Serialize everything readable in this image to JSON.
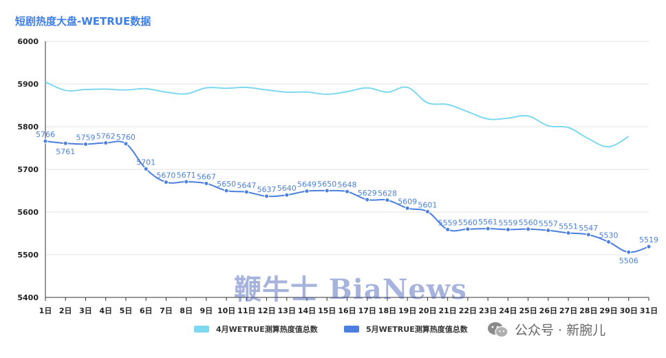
{
  "title": "短剧热度大盘-WETRUE数据",
  "watermark": "鞭牛士 BiaNews",
  "wechat_account": "公众号 · 新腕儿",
  "legend": {
    "april": "4月WETRUE测算热度值总数",
    "may": "5月WETRUE测算热度值总数"
  },
  "colors": {
    "april": "#7dd8f0",
    "may": "#4a7fe0",
    "title": "#3d7fe6",
    "may_label": "#4a80d8"
  },
  "chart_data": {
    "type": "line",
    "title": "短剧热度大盘-WETRUE数据",
    "categories": [
      "1日",
      "2日",
      "3日",
      "4日",
      "5日",
      "6日",
      "7日",
      "8日",
      "9日",
      "10日",
      "11日",
      "12日",
      "13日",
      "14日",
      "15日",
      "16日",
      "17日",
      "18日",
      "19日",
      "20日",
      "21日",
      "22日",
      "23日",
      "24日",
      "25日",
      "26日",
      "27日",
      "28日",
      "29日",
      "30日",
      "31日"
    ],
    "ylim": [
      5400,
      6000
    ],
    "yticks": [
      5400,
      5500,
      5600,
      5700,
      5800,
      5900,
      6000
    ],
    "grid": true,
    "legend_position": "bottom",
    "series": [
      {
        "name": "4月WETRUE测算热度值总数",
        "values": [
          5905,
          5885,
          5887,
          5888,
          5886,
          5889,
          5881,
          5877,
          5891,
          5890,
          5892,
          5886,
          5881,
          5881,
          5876,
          5882,
          5891,
          5881,
          5892,
          5856,
          5852,
          5835,
          5818,
          5820,
          5825,
          5802,
          5798,
          5772,
          5753,
          5777,
          null
        ],
        "show_markers": false,
        "data_labels": false
      },
      {
        "name": "5月WETRUE测算热度值总数",
        "values": [
          5766,
          5761,
          5759,
          5762,
          5760,
          5701,
          5670,
          5671,
          5667,
          5650,
          5647,
          5637,
          5640,
          5649,
          5650,
          5648,
          5629,
          5628,
          5609,
          5601,
          5559,
          5560,
          5561,
          5559,
          5560,
          5557,
          5551,
          5547,
          5530,
          5506,
          5519
        ],
        "show_markers": true,
        "data_labels": true
      }
    ]
  }
}
